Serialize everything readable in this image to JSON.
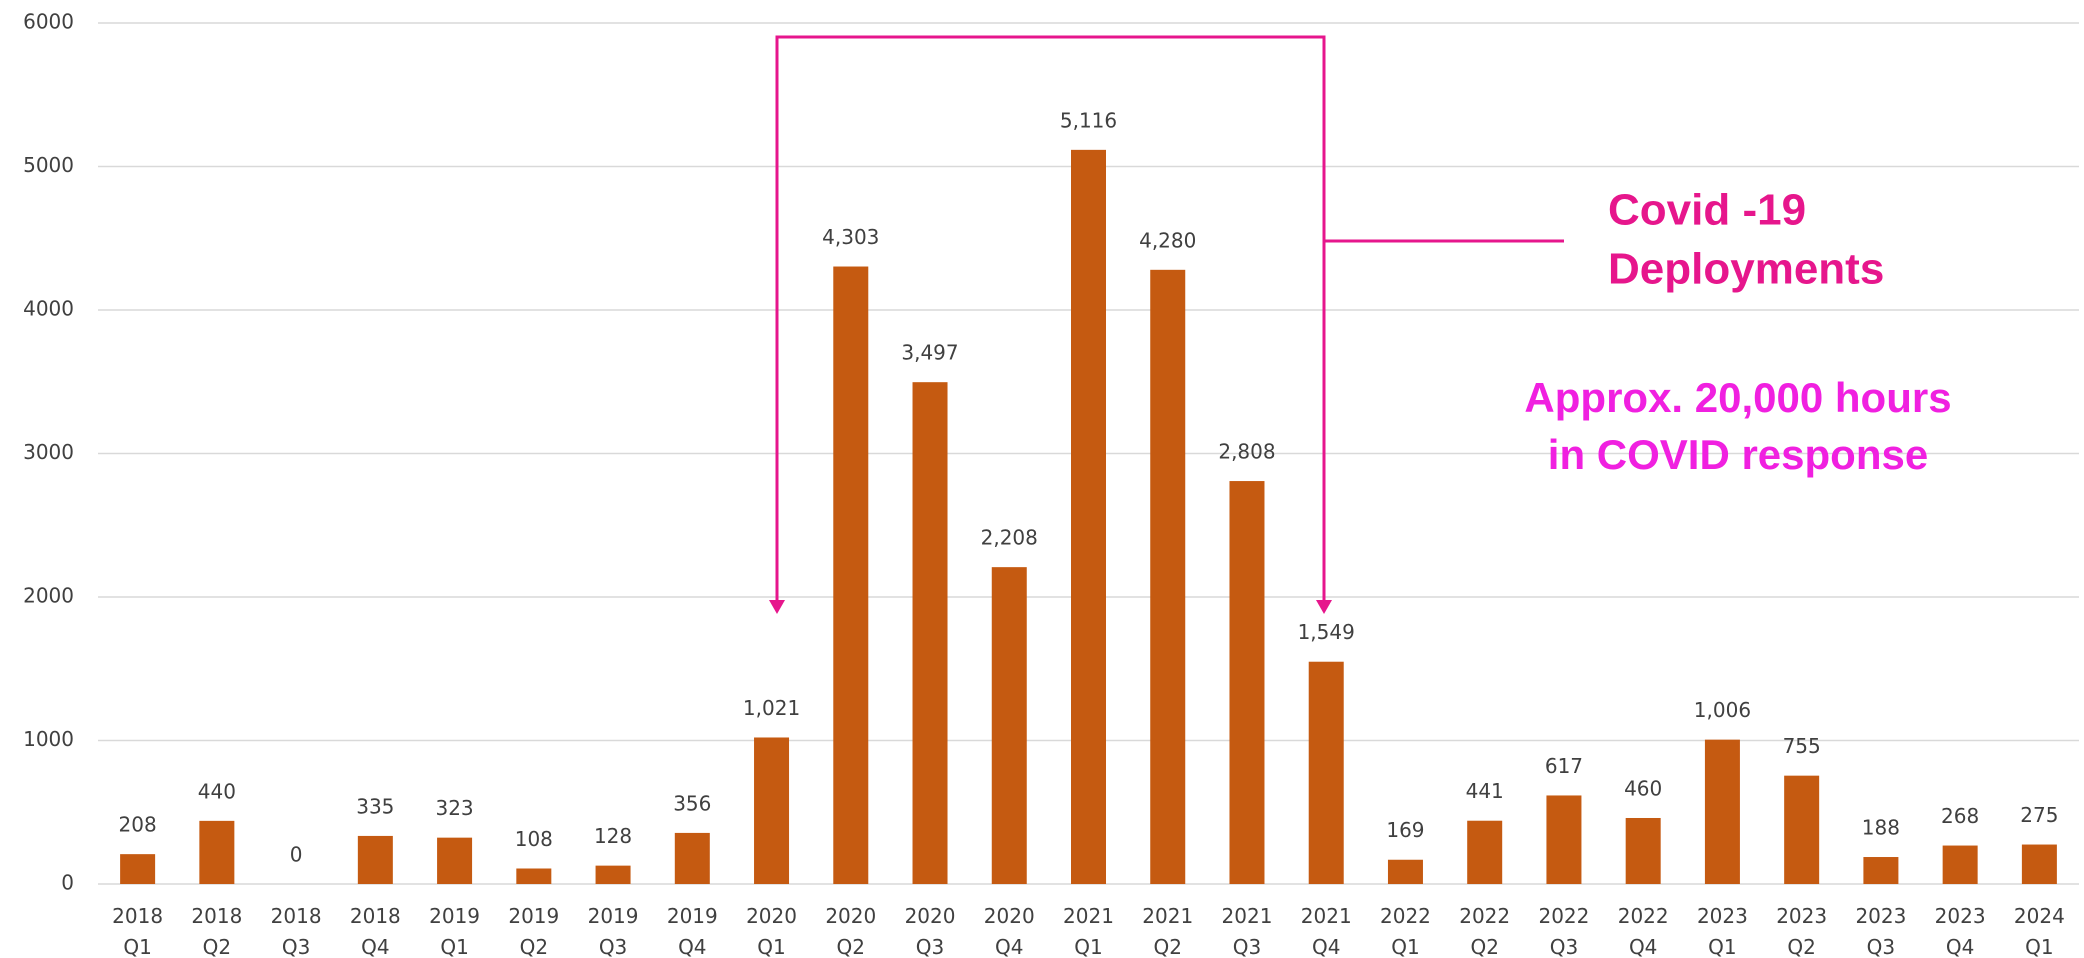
{
  "chart_data": {
    "type": "bar",
    "categories": [
      "2018 Q1",
      "2018 Q2",
      "2018 Q3",
      "2018 Q4",
      "2019 Q1",
      "2019 Q2",
      "2019 Q3",
      "2019 Q4",
      "2020 Q1",
      "2020 Q2",
      "2020 Q3",
      "2020 Q4",
      "2021 Q1",
      "2021 Q2",
      "2021 Q3",
      "2021 Q4",
      "2022 Q1",
      "2022 Q2",
      "2022 Q3",
      "2022 Q4",
      "2023 Q1",
      "2023 Q2",
      "2023 Q3",
      "2023 Q4",
      "2024 Q1"
    ],
    "values": [
      208,
      440,
      0,
      335,
      323,
      108,
      128,
      356,
      1021,
      4303,
      3497,
      2208,
      5116,
      4280,
      2808,
      1549,
      169,
      441,
      617,
      460,
      1006,
      755,
      188,
      268,
      275
    ],
    "value_labels": [
      "208",
      "440",
      "0",
      "335",
      "323",
      "108",
      "128",
      "356",
      "1,021",
      "4,303",
      "3,497",
      "2,208",
      "5,116",
      "4,280",
      "2,808",
      "1,549",
      "169",
      "441",
      "617",
      "460",
      "1,006",
      "755",
      "188",
      "268",
      "275"
    ],
    "color": "#c55a11",
    "ylim": [
      0,
      6000
    ],
    "yticks": [
      0,
      1000,
      2000,
      3000,
      4000,
      5000,
      6000
    ],
    "grid": true,
    "annotations": [
      [
        "Covid -19",
        "Deployments"
      ],
      [
        "Approx. 20,000 hours",
        "in COVID response"
      ]
    ]
  }
}
